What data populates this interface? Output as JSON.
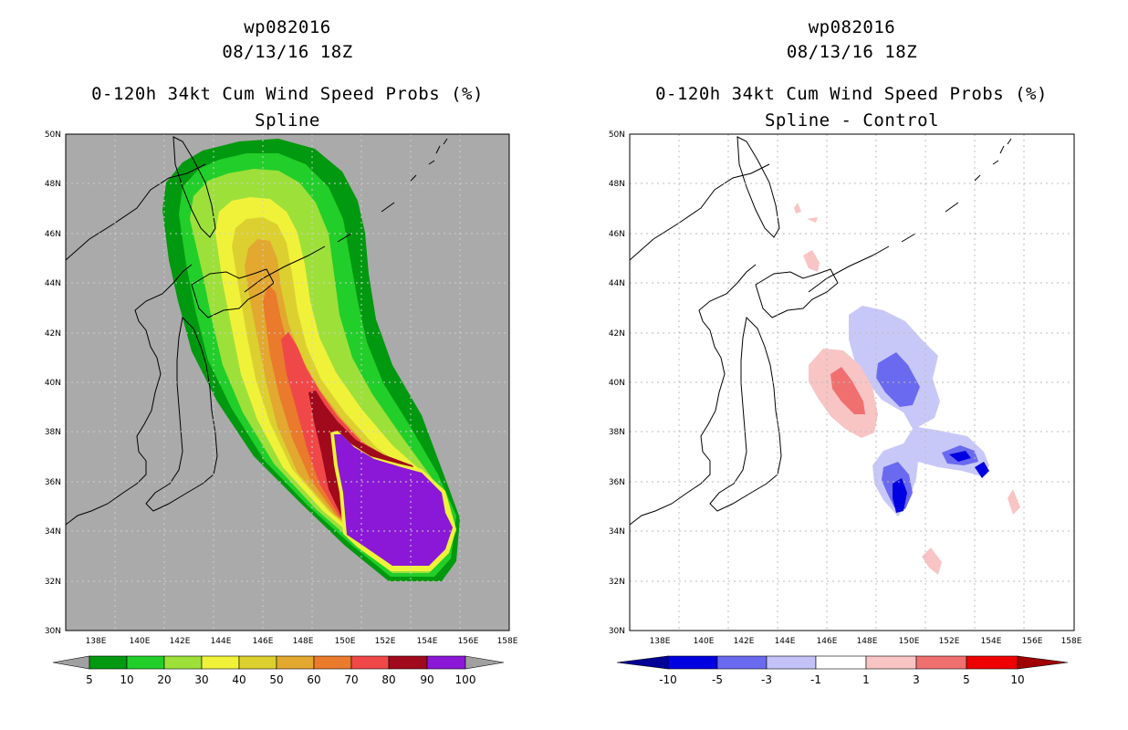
{
  "panels": [
    {
      "storm_id": "wp082016",
      "datetime": "08/13/16 18Z",
      "product": "0-120h 34kt Cum Wind Speed Probs (%)",
      "subtitle": "Spline",
      "background": "#aaaaaa",
      "colorbar": {
        "labels": [
          "5",
          "10",
          "20",
          "30",
          "40",
          "50",
          "60",
          "70",
          "80",
          "90",
          "100"
        ],
        "colors": [
          "#00990f",
          "#22ce2a",
          "#9ee03a",
          "#f0f23a",
          "#dcd030",
          "#e2a830",
          "#ea7a2c",
          "#f04848",
          "#a00a1c",
          "#8a18d6"
        ],
        "end_left": "#a0a0a0",
        "end_right": "#a0a0a0"
      }
    },
    {
      "storm_id": "wp082016",
      "datetime": "08/13/16 18Z",
      "product": "0-120h 34kt Cum Wind Speed Probs (%)",
      "subtitle": "Spline - Control",
      "background": "#ffffff",
      "colorbar": {
        "labels": [
          "-10",
          "-5",
          "-3",
          "-1",
          "1",
          "3",
          "5",
          "10"
        ],
        "colors": [
          "#0000e0",
          "#6a6af0",
          "#c2c2f8",
          "#ffffff",
          "#f8c4c4",
          "#f07070",
          "#ee0000"
        ],
        "end_left": "#000096",
        "end_right": "#a00000"
      }
    }
  ],
  "axes": {
    "lon_labels": [
      "138E",
      "140E",
      "142E",
      "144E",
      "146E",
      "148E",
      "150E",
      "152E",
      "154E",
      "156E",
      "158E"
    ],
    "lat_labels": [
      "30N",
      "32N",
      "34N",
      "36N",
      "38N",
      "40N",
      "42N",
      "44N",
      "46N",
      "48N",
      "50N"
    ]
  }
}
